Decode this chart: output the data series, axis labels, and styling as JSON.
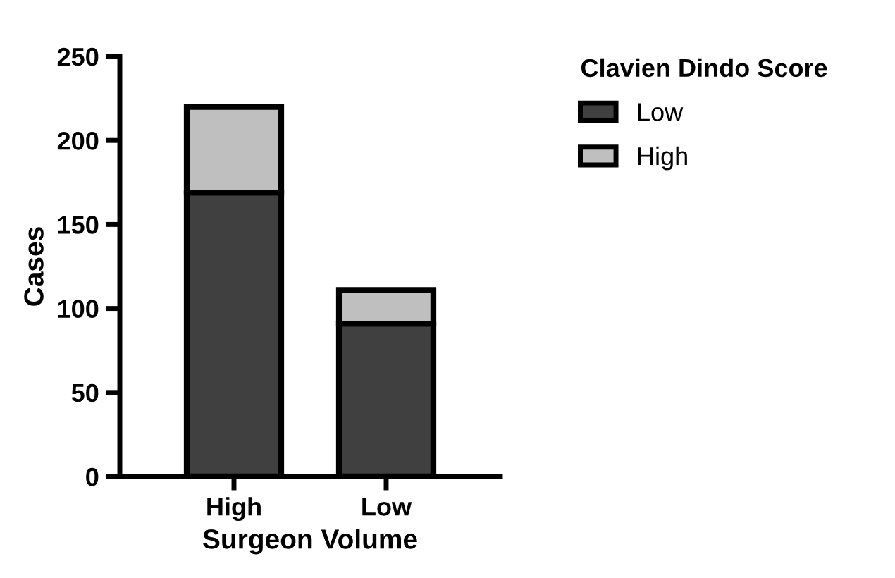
{
  "chart_data": {
    "type": "bar",
    "stacked": true,
    "xlabel": "Surgeon Volume",
    "ylabel": "Cases",
    "legend_title": "Clavien Dindo Score",
    "categories": [
      "High",
      "Low"
    ],
    "series": [
      {
        "name": "Low",
        "color": "#404040",
        "values": [
          169,
          91
        ]
      },
      {
        "name": "High",
        "color": "#bfbfbf",
        "values": [
          51,
          20
        ]
      }
    ],
    "ylim": [
      0,
      250
    ],
    "yticks": [
      0,
      50,
      100,
      150,
      200,
      250
    ],
    "grid": false,
    "legend": "top right"
  }
}
